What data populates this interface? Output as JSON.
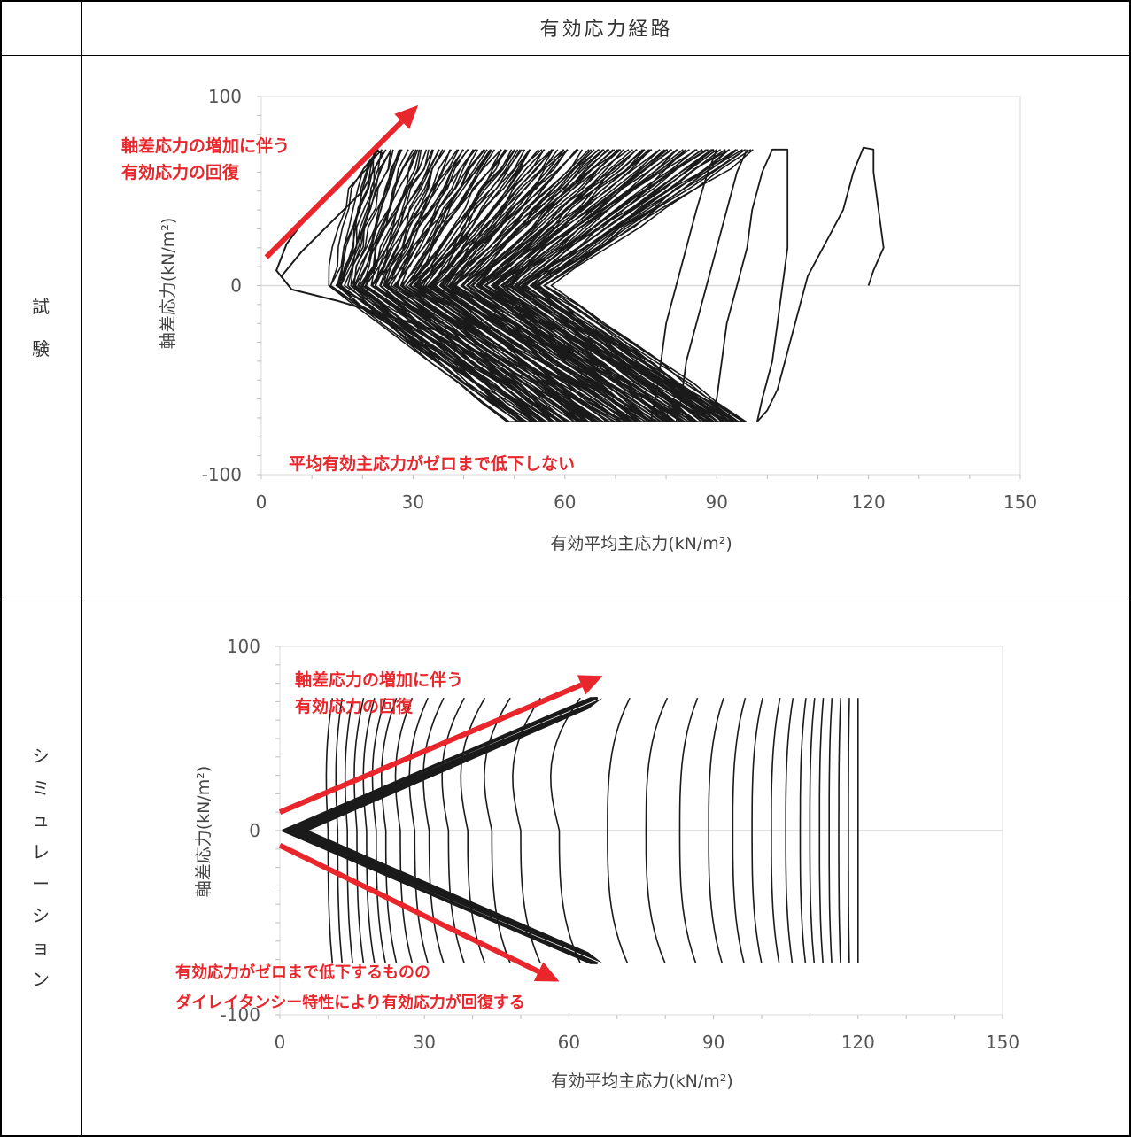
{
  "table": {
    "header_title": "有効応力経路",
    "row1_label": [
      "試",
      "験"
    ],
    "row2_label": [
      "シ",
      "ミ",
      "ュ",
      "レ",
      "ー",
      "シ",
      "ョ",
      "ン"
    ]
  },
  "colors": {
    "curve": "#1a1a1a",
    "annotation": "#e8262b",
    "gridline": "#d9d9d9",
    "axis": "#bfbfbf"
  },
  "chart_data": [
    {
      "type": "line",
      "panel": "試験",
      "xlabel": "有効平均主応力(kN/m²)",
      "ylabel": "軸差応力(kN/m²)",
      "xlim": [
        0,
        150
      ],
      "ylim": [
        -100,
        100
      ],
      "xticks": [
        "0",
        "30",
        "60",
        "90",
        "120",
        "150"
      ],
      "yticks": [
        "100",
        "0",
        "-100"
      ],
      "grid": "horizontal major at 0",
      "annotations": [
        {
          "text_lines": [
            "軸差応力の増加に伴う",
            "有効応力の回復"
          ]
        },
        {
          "text_lines": [
            "平均有効主応力がゼロまで低下しない"
          ]
        }
      ],
      "arrows": [
        {
          "from": [
            1,
            15
          ],
          "to": [
            24,
            86
          ]
        }
      ],
      "series": [
        {
          "description": "cyclic stress path, initial loop",
          "x": [
            120,
            121,
            123,
            122,
            121,
            120,
            118,
            115,
            111,
            108,
            106,
            104,
            102,
            100,
            98,
            99,
            101,
            103,
            104,
            104
          ],
          "y": [
            0,
            8,
            20,
            40,
            60,
            72,
            74,
            72,
            40,
            5,
            -20,
            -45,
            -66,
            -72,
            -60,
            -30,
            0,
            30,
            60,
            72
          ]
        },
        {
          "description": "cycle envelope",
          "x_at_q_max": [
            104,
            96,
            90,
            86,
            82,
            78,
            74,
            70,
            66,
            62,
            58,
            54,
            50,
            46,
            42,
            38,
            34,
            30,
            27,
            24
          ],
          "x_at_q_min": [
            98,
            92,
            87,
            83,
            79,
            75,
            71,
            68,
            65,
            62,
            59,
            57,
            55,
            57,
            59,
            61,
            63,
            65,
            67,
            69
          ],
          "q_max": 72,
          "q_min": -72
        }
      ]
    },
    {
      "type": "line",
      "panel": "シミュレーション",
      "xlabel": "有効平均主応力(kN/m²)",
      "ylabel": "軸差応力(kN/m²)",
      "xlim": [
        0,
        150
      ],
      "ylim": [
        -100,
        100
      ],
      "xticks": [
        "0",
        "30",
        "60",
        "90",
        "120",
        "150"
      ],
      "yticks": [
        "100",
        "0",
        "-100"
      ],
      "grid": "horizontal major at 0",
      "annotations": [
        {
          "text_lines": [
            "軸差応力の増加に伴う",
            "有効応力の回復"
          ]
        },
        {
          "text_lines": [
            "有効応力がゼロまで低下するものの",
            "ダイレイタンシー特性により有効応力が回復する"
          ]
        }
      ],
      "arrows": [
        {
          "from": [
            0,
            10
          ],
          "to": [
            67,
            84
          ]
        },
        {
          "from": [
            0,
            -8
          ],
          "to": [
            58,
            -82
          ]
        }
      ],
      "series": [
        {
          "description": "simulated cyclic stress path, cycle x positions at q=0",
          "x_at_q0": [
            120,
            118,
            116,
            114,
            112,
            110,
            108,
            105,
            102,
            98,
            94,
            89,
            83,
            76,
            68,
            58,
            50,
            44,
            39,
            35,
            31,
            28,
            25,
            22,
            20,
            18,
            16,
            14,
            12,
            10
          ],
          "q_max": 72,
          "q_min": -72,
          "p_at_q_max": 67,
          "p_at_q_min": 67
        }
      ]
    }
  ]
}
